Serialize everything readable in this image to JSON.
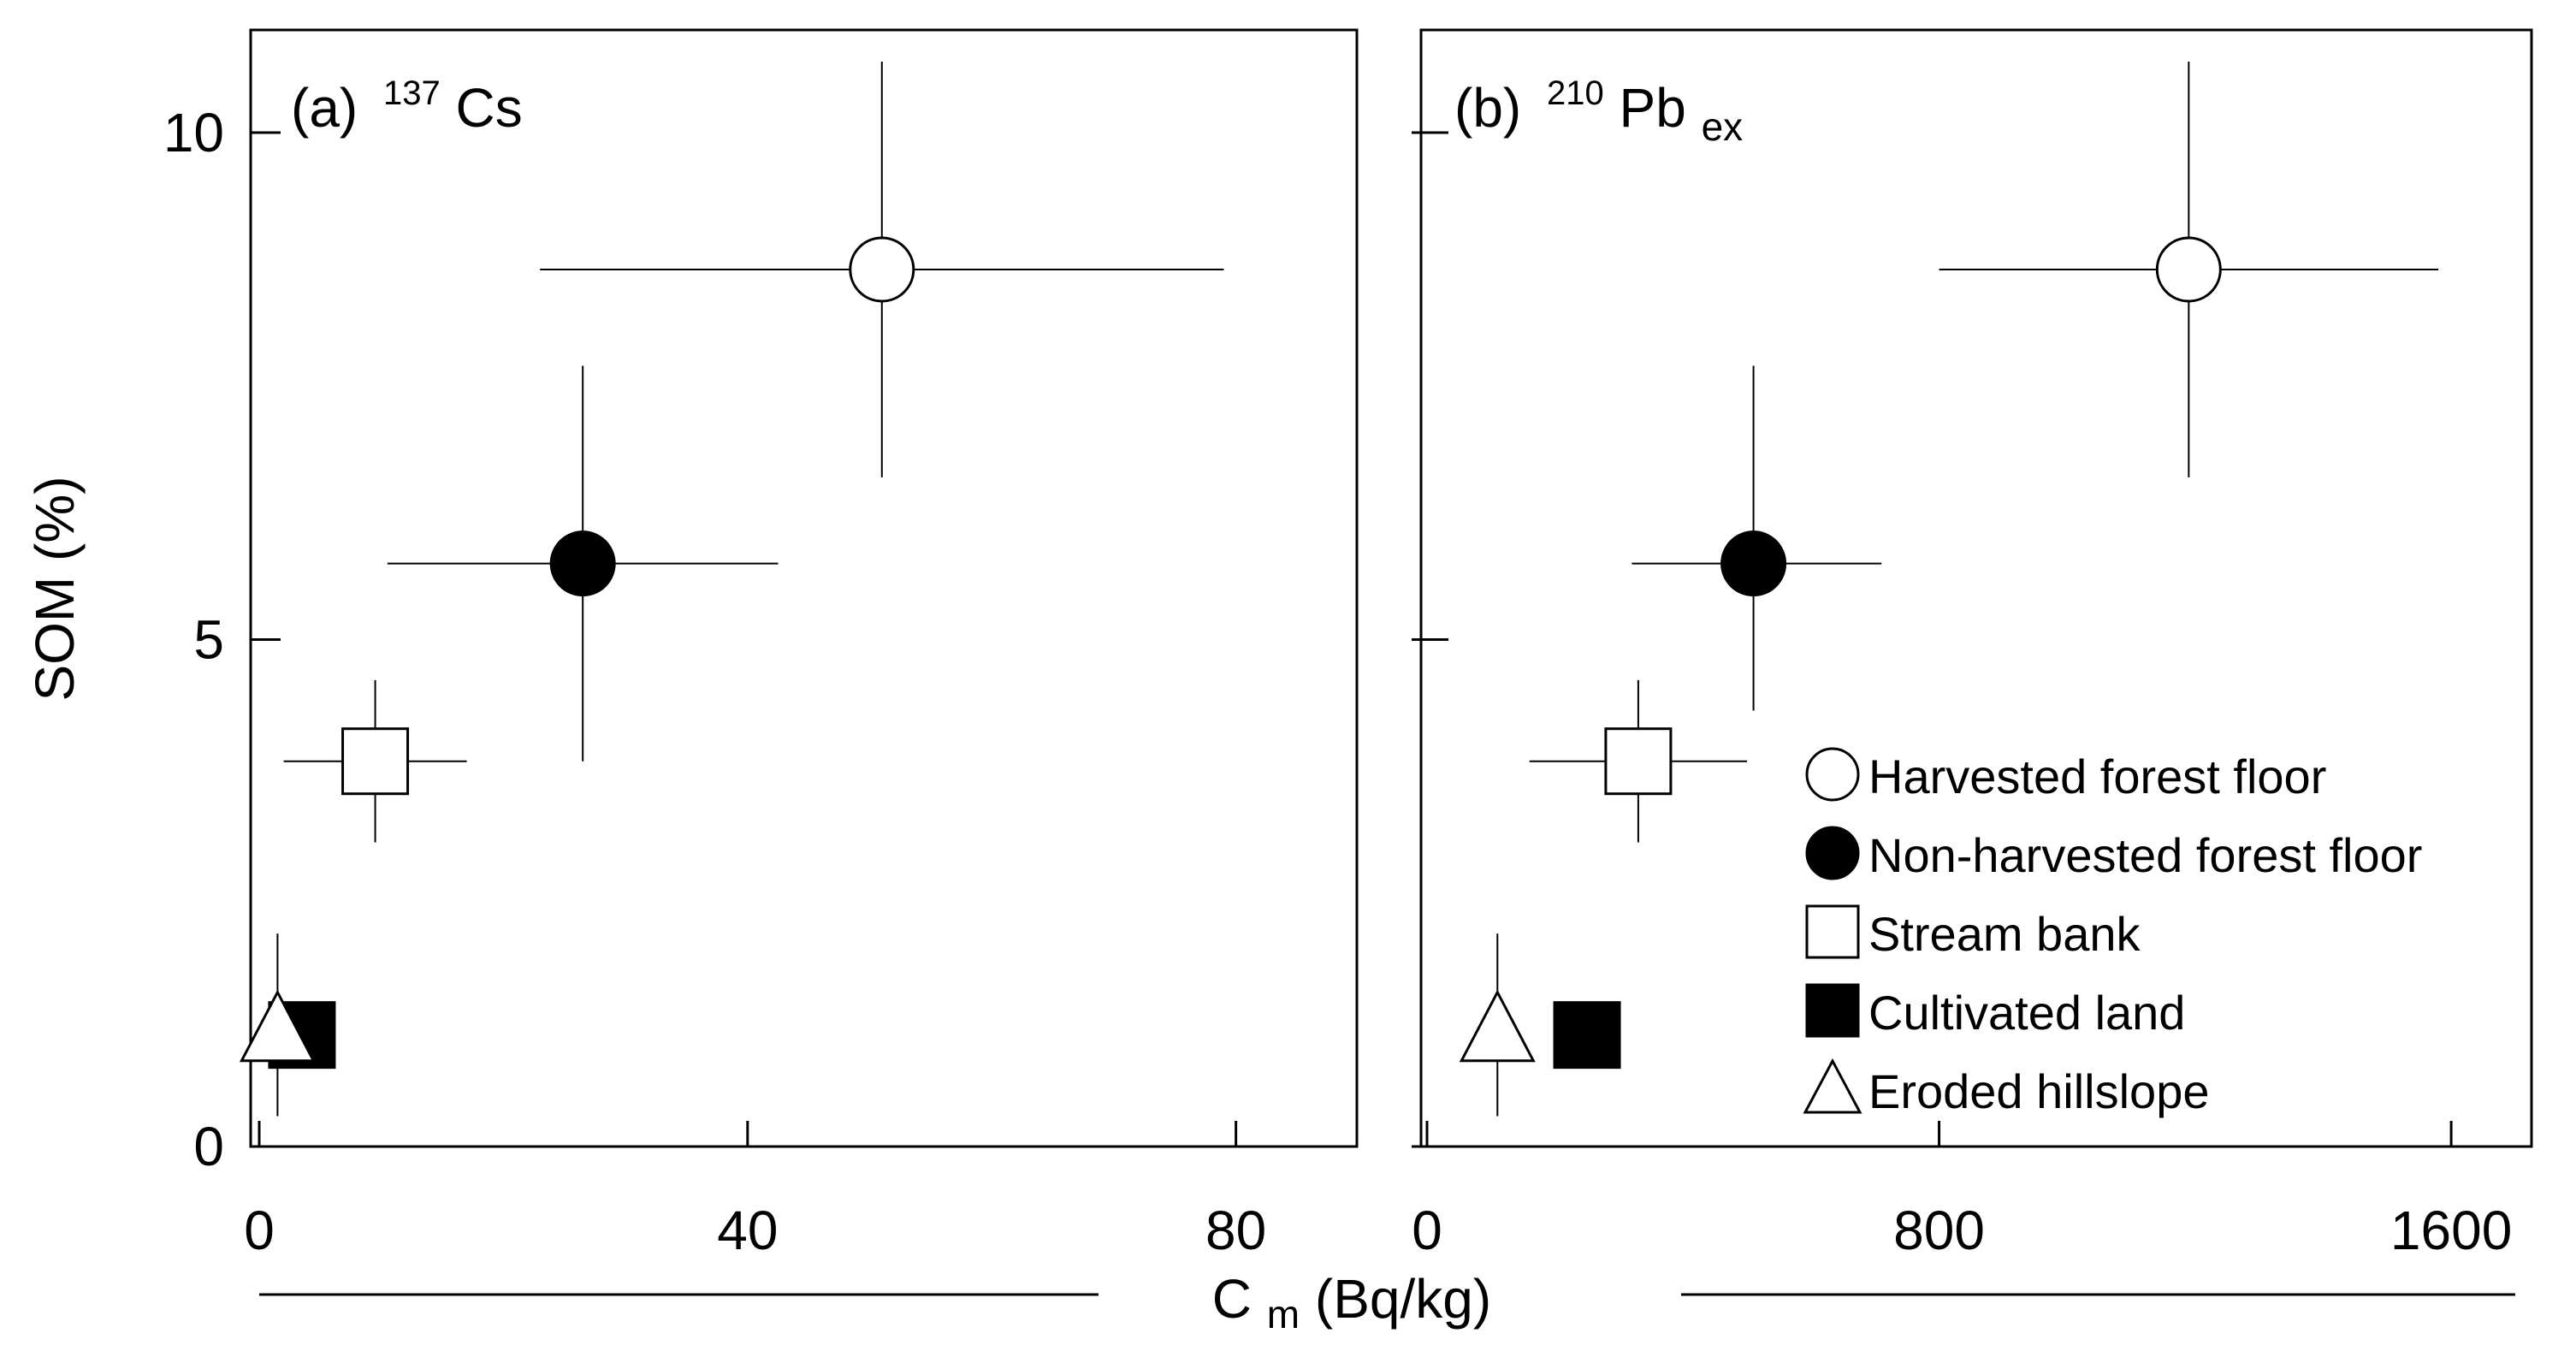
{
  "chart_data": [
    {
      "type": "scatter",
      "panel_label": "(a)",
      "isotope_mass": "137",
      "isotope_symbol": "Cs",
      "isotope_subscript": "",
      "xlim": [
        0,
        85
      ],
      "ylim": [
        0,
        10.5
      ],
      "xticks": [
        0,
        40,
        80
      ],
      "yticks": [
        0,
        5,
        10
      ],
      "xtick_labels": [
        "0",
        "40",
        "80"
      ],
      "ytick_labels": [
        "0",
        "5",
        "10"
      ],
      "series": [
        {
          "name": "Harvested forest floor",
          "marker": "circle-open",
          "x": 51,
          "y": 8.65,
          "xerr": [
            23,
            79
          ],
          "yerr": [
            6.6,
            10.7
          ]
        },
        {
          "name": "Non-harvested forest floor",
          "marker": "circle-filled",
          "x": 26.5,
          "y": 5.75,
          "xerr": [
            10.5,
            42.5
          ],
          "yerr": [
            3.8,
            7.7
          ]
        },
        {
          "name": "Stream bank",
          "marker": "square-open",
          "x": 9.5,
          "y": 3.8,
          "xerr": [
            2,
            17
          ],
          "yerr": [
            3.0,
            4.6
          ]
        },
        {
          "name": "Cultivated land",
          "marker": "square-filled",
          "x": 3.5,
          "y": 1.1,
          "xerr": null,
          "yerr": null
        },
        {
          "name": "Eroded hillslope",
          "marker": "triangle-open",
          "x": 1.5,
          "y": 1.15,
          "xerr": null,
          "yerr": [
            0.3,
            2.1
          ]
        }
      ]
    },
    {
      "type": "scatter",
      "panel_label": "(b)",
      "isotope_mass": "210",
      "isotope_symbol": "Pb",
      "isotope_subscript": "ex",
      "xlim": [
        0,
        1660
      ],
      "ylim": [
        0,
        10.5
      ],
      "xticks": [
        0,
        800,
        1600
      ],
      "yticks": [
        0,
        5,
        10
      ],
      "xtick_labels": [
        "0",
        "800",
        "1600"
      ],
      "ytick_labels": [],
      "series": [
        {
          "name": "Harvested forest floor",
          "marker": "circle-open",
          "x": 1190,
          "y": 8.65,
          "xerr": [
            800,
            1580
          ],
          "yerr": [
            6.6,
            10.7
          ]
        },
        {
          "name": "Non-harvested forest floor",
          "marker": "circle-filled",
          "x": 510,
          "y": 5.75,
          "xerr": [
            320,
            710
          ],
          "yerr": [
            4.3,
            7.7
          ]
        },
        {
          "name": "Stream bank",
          "marker": "square-open",
          "x": 330,
          "y": 3.8,
          "xerr": [
            160,
            500
          ],
          "yerr": [
            3.0,
            4.6
          ]
        },
        {
          "name": "Cultivated land",
          "marker": "square-filled",
          "x": 250,
          "y": 1.1,
          "xerr": null,
          "yerr": null
        },
        {
          "name": "Eroded hillslope",
          "marker": "triangle-open",
          "x": 110,
          "y": 1.15,
          "xerr": null,
          "yerr": [
            0.3,
            2.1
          ]
        }
      ]
    }
  ],
  "axes": {
    "ylabel": "SOM (%)",
    "xlabel_main": "C",
    "xlabel_sub": "m",
    "xlabel_unit": " (Bq/kg)"
  },
  "legend": {
    "placement": "lower-right of panel (b)",
    "items": [
      {
        "label": "Harvested forest floor",
        "marker": "circle-open"
      },
      {
        "label": "Non-harvested forest floor",
        "marker": "circle-filled"
      },
      {
        "label": "Stream bank",
        "marker": "square-open"
      },
      {
        "label": "Cultivated land",
        "marker": "square-filled"
      },
      {
        "label": "Eroded hillslope",
        "marker": "triangle-open"
      }
    ]
  },
  "colors": {
    "ink": "#000000",
    "paper": "#ffffff"
  }
}
